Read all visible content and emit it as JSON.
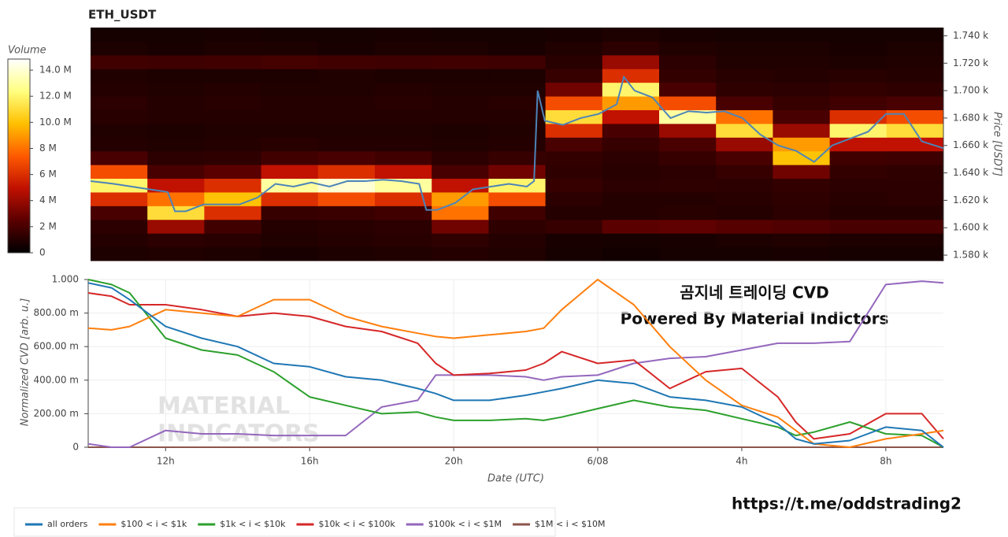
{
  "chart_data": [
    {
      "type": "heatmap",
      "title": "ETH_USDT",
      "colorbar_title": "Volume",
      "y_label": "Price [USDT]",
      "xlim": [
        9.85,
        33.6
      ],
      "ylim": [
        1576,
        1746
      ],
      "yticks": [
        {
          "value": 1580,
          "label": "1.580 k"
        },
        {
          "value": 1600,
          "label": "1.600 k"
        },
        {
          "value": 1620,
          "label": "1.620 k"
        },
        {
          "value": 1640,
          "label": "1.640 k"
        },
        {
          "value": 1660,
          "label": "1.660 k"
        },
        {
          "value": 1680,
          "label": "1.680 k"
        },
        {
          "value": 1700,
          "label": "1.700 k"
        },
        {
          "value": 1720,
          "label": "1.720 k"
        },
        {
          "value": 1740,
          "label": "1.740 k"
        }
      ],
      "colorlim": [
        0,
        14.85
      ],
      "colorbar_ticks": [
        0,
        {
          "value": 2,
          "label": "2 M"
        },
        {
          "value": 4,
          "label": "4 M"
        },
        {
          "value": 6,
          "label": "6 M"
        },
        {
          "value": 8,
          "label": "8 M"
        },
        {
          "value": 10,
          "label": "10.0 M"
        },
        {
          "value": 12,
          "label": "12.0 M"
        },
        {
          "value": 14,
          "label": "14.0 M"
        }
      ],
      "colorscale": [
        "#000000",
        "#5a0000",
        "#c01000",
        "#ff5a00",
        "#ffc000",
        "#ffff80",
        "#ffffff"
      ],
      "z": [
        [
          0.8,
          0.9,
          0.8,
          0.7,
          0.8,
          0.9,
          1.0,
          0.9,
          0.6,
          0.5,
          0.6,
          0.6,
          0.7,
          0.6,
          0.6
        ],
        [
          1.0,
          1.2,
          1.1,
          0.9,
          1.0,
          1.1,
          1.3,
          1.0,
          0.7,
          0.6,
          0.7,
          0.8,
          0.9,
          0.8,
          0.8
        ],
        [
          1.2,
          4,
          1.8,
          1.0,
          1.1,
          1.2,
          3,
          1.3,
          1.5,
          2.5,
          2.6,
          2.4,
          2.2,
          2.0,
          2.0
        ],
        [
          2,
          11,
          6,
          1.5,
          1.6,
          1.8,
          8,
          1.8,
          1.0,
          1.0,
          1.1,
          1.0,
          1.2,
          1.0,
          1.0
        ],
        [
          6,
          8,
          10,
          6,
          7,
          6,
          9,
          7,
          1.2,
          1.0,
          1.0,
          1.1,
          1.3,
          1.1,
          1.2
        ],
        [
          12,
          5,
          6,
          13,
          14,
          13,
          5,
          12,
          1.5,
          1.2,
          1.3,
          1.2,
          1.4,
          1.2,
          1.2
        ],
        [
          7,
          2,
          2.5,
          5,
          6,
          5,
          2,
          3,
          1.3,
          1.1,
          1.2,
          1.5,
          3,
          1.4,
          1.3
        ],
        [
          2,
          1.2,
          1.3,
          1.8,
          2,
          1.8,
          1.2,
          1.5,
          1.4,
          1.2,
          1.5,
          2,
          10,
          1.8,
          1.7
        ],
        [
          1.0,
          0.9,
          1.0,
          1.1,
          1.0,
          1.0,
          0.9,
          1.0,
          2,
          1.5,
          2,
          4,
          9,
          5,
          5
        ],
        [
          0.9,
          0.8,
          0.9,
          0.9,
          0.9,
          0.9,
          0.8,
          0.9,
          6,
          2,
          4,
          11,
          4,
          12,
          11
        ],
        [
          1.1,
          1.0,
          1.0,
          1.0,
          1.0,
          1.0,
          1.0,
          1.0,
          11,
          5,
          13,
          8,
          2,
          6,
          7
        ],
        [
          1.2,
          1.0,
          1.1,
          1.0,
          1.0,
          1.1,
          1.0,
          1.1,
          7,
          9,
          7,
          2,
          1.5,
          1.8,
          2
        ],
        [
          1.0,
          0.9,
          1.0,
          0.9,
          0.9,
          1.0,
          0.9,
          0.9,
          3,
          12,
          2,
          1.3,
          1.2,
          1.4,
          1.3
        ],
        [
          0.9,
          0.8,
          0.8,
          0.8,
          0.9,
          0.8,
          0.8,
          0.8,
          1.5,
          6,
          1.4,
          1.1,
          1.0,
          1.1,
          1.0
        ],
        [
          1.8,
          1.7,
          1.8,
          1.9,
          1.8,
          1.7,
          1.8,
          1.7,
          1.1,
          4,
          1.2,
          0.9,
          0.9,
          0.8,
          0.9
        ],
        [
          0.8,
          0.7,
          0.8,
          0.8,
          0.7,
          0.8,
          0.8,
          0.7,
          0.9,
          1.2,
          0.9,
          0.8,
          0.8,
          0.7,
          0.8
        ],
        [
          0.6,
          0.6,
          0.7,
          0.6,
          0.6,
          0.7,
          0.6,
          0.6,
          0.7,
          0.8,
          0.7,
          0.6,
          0.6,
          0.6,
          0.6
        ]
      ],
      "x": [
        9.85,
        10.5,
        11,
        11.5,
        12,
        12.2,
        12.5,
        13,
        13.5,
        14,
        14.5,
        15,
        15.5,
        16,
        16.5,
        17,
        17.5,
        18,
        18.5,
        19,
        19.2,
        19.5,
        20,
        20.5,
        21,
        21.5,
        22,
        22.2,
        22.3,
        22.5,
        23,
        23.5,
        24,
        24.5,
        24.7,
        25,
        25.5,
        26,
        26.5,
        27,
        27.5,
        28,
        28.5,
        29,
        29.5,
        30,
        30.5,
        31,
        31.5,
        32,
        32.5,
        33,
        33.6
      ],
      "series": [
        {
          "color": "#4d84b8",
          "values": [
            1634,
            1632,
            1630,
            1628,
            1626,
            1612,
            1612,
            1617,
            1617,
            1617,
            1622,
            1632,
            1630,
            1633,
            1630,
            1634,
            1634,
            1635,
            1634,
            1632,
            1613,
            1613,
            1618,
            1628,
            1630,
            1632,
            1630,
            1634,
            1700,
            1678,
            1675,
            1680,
            1683,
            1690,
            1710,
            1700,
            1695,
            1680,
            1685,
            1684,
            1685,
            1680,
            1668,
            1660,
            1656,
            1648,
            1660,
            1665,
            1670,
            1683,
            1683,
            1663,
            1658
          ]
        }
      ]
    },
    {
      "type": "line",
      "y_label": "Normalized CVD [arb. u.]",
      "x_label": "Date (UTC)",
      "grid": true,
      "annotations": [
        "곰지네 트레이딩 CVD",
        "Powered By Material Indictors"
      ],
      "watermark": [
        "MATERIAL",
        "INDICATORS"
      ],
      "xlim": [
        9.85,
        33.6
      ],
      "xticks": [
        {
          "value": 12,
          "label": "12h"
        },
        {
          "value": 16,
          "label": "16h"
        },
        {
          "value": 20,
          "label": "20h"
        },
        {
          "value": 24,
          "label": "6/08"
        },
        {
          "value": 28,
          "label": "4h"
        },
        {
          "value": 32,
          "label": "8h"
        }
      ],
      "ylim": [
        0,
        1
      ],
      "yticks": [
        0,
        {
          "value": 0.2,
          "label": "200.00 m"
        },
        {
          "value": 0.4,
          "label": "400.00 m"
        },
        {
          "value": 0.6,
          "label": "600.00 m"
        },
        {
          "value": 0.8,
          "label": "800.00 m"
        },
        {
          "value": 1,
          "label": "1.000"
        }
      ],
      "x": [
        9.85,
        10.5,
        11,
        12,
        13,
        14,
        15,
        16,
        17,
        18,
        19,
        19.5,
        20,
        21,
        22,
        22.5,
        23,
        24,
        25,
        26,
        27,
        28,
        29,
        29.5,
        30,
        31,
        32,
        33,
        33.6
      ],
      "series": [
        {
          "name": "all orders",
          "color": "#1f77b4",
          "values": [
            0.98,
            0.95,
            0.88,
            0.72,
            0.65,
            0.6,
            0.5,
            0.48,
            0.42,
            0.4,
            0.35,
            0.32,
            0.28,
            0.28,
            0.31,
            0.33,
            0.35,
            0.4,
            0.38,
            0.3,
            0.28,
            0.24,
            0.14,
            0.05,
            0.02,
            0.04,
            0.12,
            0.1,
            0.0
          ]
        },
        {
          "name": "$100 < i < $1k",
          "color": "#ff7f0e",
          "values": [
            0.71,
            0.7,
            0.72,
            0.82,
            0.8,
            0.78,
            0.88,
            0.88,
            0.78,
            0.72,
            0.68,
            0.66,
            0.65,
            0.67,
            0.69,
            0.71,
            0.82,
            1.0,
            0.85,
            0.6,
            0.4,
            0.25,
            0.18,
            0.1,
            0.02,
            0.0,
            0.05,
            0.08,
            0.1
          ]
        },
        {
          "name": "$1k < i < $10k",
          "color": "#2ca02c",
          "values": [
            1.0,
            0.97,
            0.92,
            0.65,
            0.58,
            0.55,
            0.45,
            0.3,
            0.25,
            0.2,
            0.21,
            0.18,
            0.16,
            0.16,
            0.17,
            0.16,
            0.18,
            0.23,
            0.28,
            0.24,
            0.22,
            0.17,
            0.12,
            0.07,
            0.09,
            0.15,
            0.08,
            0.07,
            0.0
          ]
        },
        {
          "name": "$10k < i < $100k",
          "color": "#d62728",
          "values": [
            0.92,
            0.9,
            0.85,
            0.85,
            0.82,
            0.78,
            0.8,
            0.78,
            0.72,
            0.69,
            0.62,
            0.5,
            0.43,
            0.44,
            0.46,
            0.5,
            0.57,
            0.5,
            0.52,
            0.35,
            0.45,
            0.47,
            0.3,
            0.15,
            0.05,
            0.08,
            0.2,
            0.2,
            0.05
          ]
        },
        {
          "name": "$100k < i < $1M",
          "color": "#9467bd",
          "values": [
            0.02,
            0.0,
            0.0,
            0.1,
            0.08,
            0.08,
            0.07,
            0.07,
            0.07,
            0.24,
            0.28,
            0.43,
            0.43,
            0.43,
            0.42,
            0.4,
            0.42,
            0.43,
            0.5,
            0.53,
            0.54,
            0.58,
            0.62,
            0.62,
            0.62,
            0.63,
            0.97,
            0.99,
            0.98
          ]
        },
        {
          "name": "$1M < i < $10M",
          "color": "#8c564b",
          "values": [
            0,
            0,
            0,
            0,
            0,
            0,
            0,
            0,
            0,
            0,
            0,
            0,
            0,
            0,
            0,
            0,
            0,
            0,
            0,
            0,
            0,
            0,
            0,
            0,
            0,
            0,
            0,
            0,
            0
          ]
        }
      ]
    }
  ],
  "footer": {
    "url": "https://t.me/oddstrading2"
  }
}
